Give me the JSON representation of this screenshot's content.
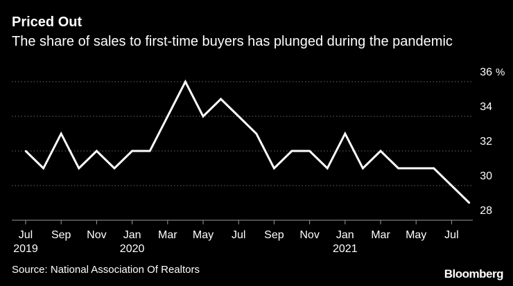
{
  "header": {
    "title": "Priced Out",
    "subtitle": "The share of sales to first-time buyers has plunged during the pandemic"
  },
  "footer": {
    "source": "Source: National Association Of Realtors",
    "brand": "Bloomberg"
  },
  "colors": {
    "background": "#000000",
    "line": "#ffffff",
    "text": "#ffffff",
    "grid": "#6b6b6b"
  },
  "chart_data": {
    "type": "line",
    "title": "Priced Out",
    "subtitle": "The share of sales to first-time buyers has plunged during the pandemic",
    "ylabel": "",
    "y_unit": "%",
    "ylim": [
      28,
      36
    ],
    "yticks": [
      28,
      30,
      32,
      34,
      36
    ],
    "y_axis_position": "right",
    "grid": "horizontal dotted",
    "x": [
      "2019-07",
      "2019-08",
      "2019-09",
      "2019-10",
      "2019-11",
      "2019-12",
      "2020-01",
      "2020-02",
      "2020-03",
      "2020-04",
      "2020-05",
      "2020-06",
      "2020-07",
      "2020-08",
      "2020-09",
      "2020-10",
      "2020-11",
      "2020-12",
      "2021-01",
      "2021-02",
      "2021-03",
      "2021-04",
      "2021-05",
      "2021-06",
      "2021-07",
      "2021-08"
    ],
    "x_tick_labels": [
      {
        "month": "Jul",
        "year": "2019"
      },
      {
        "month": "Sep",
        "year": ""
      },
      {
        "month": "Nov",
        "year": ""
      },
      {
        "month": "Jan",
        "year": "2020"
      },
      {
        "month": "Mar",
        "year": ""
      },
      {
        "month": "May",
        "year": ""
      },
      {
        "month": "Jul",
        "year": ""
      },
      {
        "month": "Sep",
        "year": ""
      },
      {
        "month": "Nov",
        "year": ""
      },
      {
        "month": "Jan",
        "year": "2021"
      },
      {
        "month": "Mar",
        "year": ""
      },
      {
        "month": "May",
        "year": ""
      },
      {
        "month": "Jul",
        "year": ""
      }
    ],
    "series": [
      {
        "name": "",
        "values": [
          32,
          31,
          33,
          31,
          32,
          31,
          32,
          32,
          34,
          36,
          34,
          35,
          34,
          33,
          31,
          32,
          32,
          31,
          33,
          31,
          32,
          31,
          31,
          31,
          30,
          29
        ]
      }
    ],
    "source": "National Association Of Realtors"
  }
}
